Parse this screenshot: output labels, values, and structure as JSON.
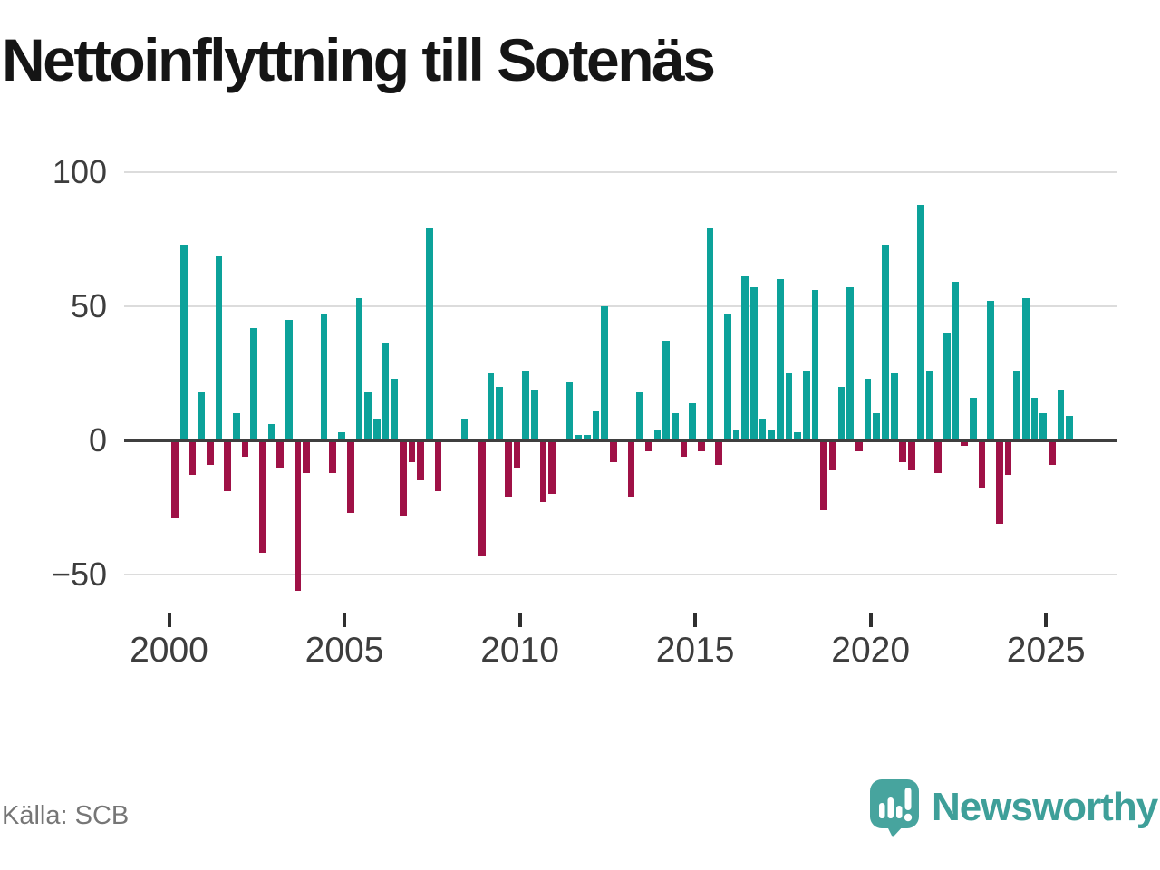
{
  "title": "Nettoinflyttning till Sotenäs",
  "source_label": "Källa: SCB",
  "brand": {
    "name": "Newsworthy",
    "color": "#3e9f99",
    "icon_color": "#47a49e"
  },
  "chart_data": {
    "type": "bar",
    "title": "Nettoinflyttning till Sotenäs",
    "frequency": "quarterly",
    "x_start": "2000-Q1",
    "x_end": "2025-Q3",
    "start_year": 2000,
    "values": [
      -29,
      73,
      -13,
      18,
      -9,
      69,
      -19,
      10,
      -6,
      42,
      -42,
      6,
      -10,
      45,
      -56,
      -12,
      0,
      47,
      -12,
      3,
      -27,
      53,
      18,
      8,
      36,
      23,
      -28,
      -8,
      -15,
      79,
      -19,
      0,
      0,
      8,
      0,
      -43,
      25,
      20,
      -21,
      -10,
      26,
      19,
      -23,
      -20,
      0,
      22,
      2,
      2,
      11,
      50,
      -8,
      0,
      -21,
      18,
      -4,
      4,
      37,
      10,
      -6,
      14,
      -4,
      79,
      -9,
      47,
      4,
      61,
      57,
      8,
      4,
      60,
      25,
      3,
      26,
      56,
      -26,
      -11,
      20,
      57,
      -4,
      23,
      10,
      73,
      25,
      -8,
      -11,
      88,
      26,
      -12,
      40,
      59,
      -2,
      16,
      -18,
      52,
      -31,
      -13,
      26,
      53,
      16,
      10,
      -9,
      19,
      9
    ],
    "x_tick_years": [
      2000,
      2005,
      2010,
      2015,
      2020,
      2025
    ],
    "x_tick_labels": [
      "2000",
      "2005",
      "2010",
      "2015",
      "2020",
      "2025"
    ],
    "y_tick_values": [
      100,
      50,
      0,
      -50
    ],
    "y_tick_labels": [
      "100",
      "50",
      "0",
      "−50"
    ],
    "ylim": [
      -60,
      100
    ],
    "grid": true,
    "positive_color": "#0ca29a",
    "negative_color": "#9f1146"
  }
}
